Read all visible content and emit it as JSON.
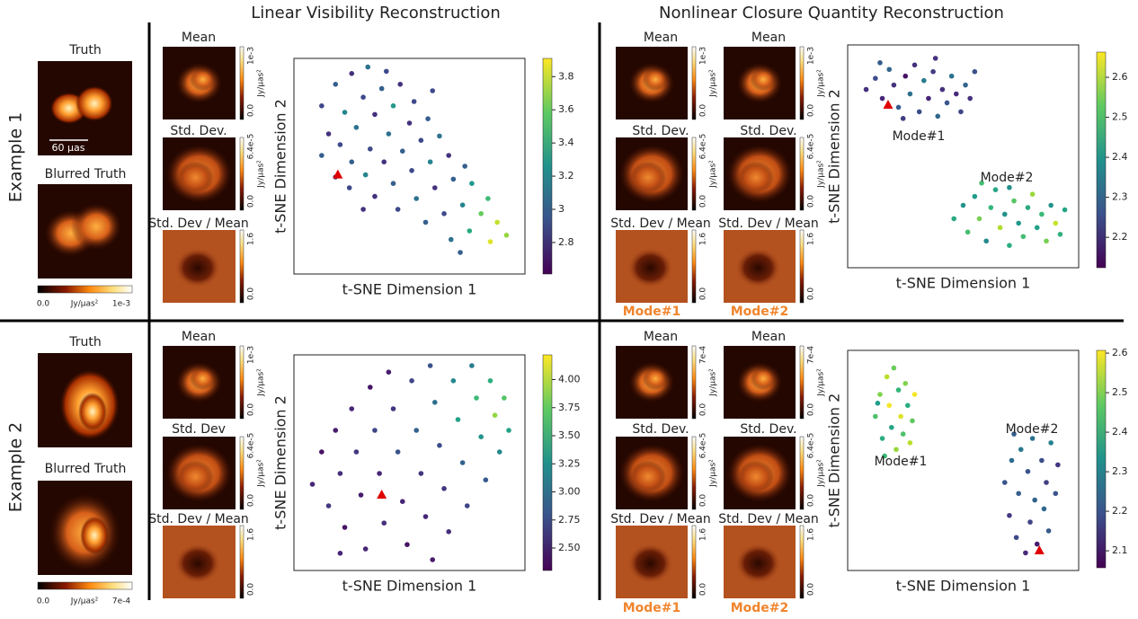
{
  "figure": {
    "titles": [
      "Linear Visibility Reconstruction",
      "Nonlinear Closure Quantity Reconstruction"
    ],
    "examples": [
      {
        "label": "Example 1",
        "truth": "Truth",
        "blurred": "Blurred Truth",
        "scale_bar": "60 μas",
        "cbar": [
          "0.0",
          "Jy/μas²",
          "1e-3"
        ],
        "linear": [
          {
            "title": "Mean",
            "cbar": [
              "0.0",
              "Jy/μas²",
              "1e-3"
            ]
          },
          {
            "title": "Std. Dev.",
            "cbar": [
              "0.0",
              "Jy/μas²",
              "6.4e-5"
            ]
          },
          {
            "title": "Std. Dev / Mean",
            "cbar": [
              "0.0",
              "1.6"
            ]
          }
        ],
        "nonlinear": [
          {
            "mode": "Mode#1",
            "panels": [
              {
                "title": "Mean",
                "cbar": [
                  "0.0",
                  "Jy/μas²",
                  "1e-3"
                ]
              },
              {
                "title": "Std. Dev.",
                "cbar": [
                  "0.0",
                  "Jy/μas²",
                  "6.4e-5"
                ]
              },
              {
                "title": "Std. Dev / Mean",
                "cbar": [
                  "0.0",
                  "1.6"
                ]
              }
            ]
          },
          {
            "mode": "Mode#2",
            "panels": [
              {
                "title": "Mean",
                "cbar": [
                  "0.0",
                  "Jy/μas²",
                  "1e-3"
                ]
              },
              {
                "title": "Std. Dev.",
                "cbar": [
                  "0.0",
                  "Jy/μas²",
                  "6.4e-5"
                ]
              },
              {
                "title": "Std. Dev / Mean",
                "cbar": [
                  "0.0",
                  "1.6"
                ]
              }
            ]
          }
        ]
      },
      {
        "label": "Example 2",
        "truth": "Truth",
        "blurred": "Blurred Truth",
        "cbar": [
          "0.0",
          "Jy/μas²",
          "7e-4"
        ],
        "linear": [
          {
            "title": "Mean",
            "cbar": [
              "0.0",
              "Jy/μas²",
              "1e-3"
            ]
          },
          {
            "title": "Std. Dev",
            "cbar": [
              "0.0",
              "Jy/μas²",
              "6.4e-5"
            ]
          },
          {
            "title": "Std. Dev / Mean",
            "cbar": [
              "0.0",
              "1.6"
            ]
          }
        ],
        "nonlinear": [
          {
            "mode": "Mode#1",
            "panels": [
              {
                "title": "Mean",
                "cbar": [
                  "0.0",
                  "Jy/μas²",
                  "7e-4"
                ]
              },
              {
                "title": "Std. Dev.",
                "cbar": [
                  "0.0",
                  "Jy/μas²",
                  "6.4e-5"
                ]
              },
              {
                "title": "Std. Dev / Mean",
                "cbar": [
                  "0.0",
                  "1.6"
                ]
              }
            ]
          },
          {
            "mode": "Mode#2",
            "panels": [
              {
                "title": "Mean",
                "cbar": [
                  "0.0",
                  "Jy/μas²",
                  "7e-4"
                ]
              },
              {
                "title": "Std. Dev.",
                "cbar": [
                  "0.0",
                  "Jy/μas²",
                  "6.4e-5"
                ]
              },
              {
                "title": "Std. Dev / Mean",
                "cbar": [
                  "0.0",
                  "1.6"
                ]
              }
            ]
          }
        ]
      }
    ]
  },
  "chart_data": [
    {
      "type": "scatter",
      "xlabel": "t-SNE Dimension 1",
      "ylabel": "t-SNE Dimension 2",
      "xlim": [
        0,
        100
      ],
      "ylim": [
        0,
        100
      ],
      "colormap": "viridis",
      "clim": [
        2.61,
        3.91
      ],
      "cticks": [
        2.8,
        3.0,
        3.2,
        3.4,
        3.6,
        3.8
      ],
      "truth": [
        19,
        46
      ],
      "truth_color": "#e00000",
      "points": [
        [
          12,
          78,
          2.9
        ],
        [
          18,
          88,
          3.0
        ],
        [
          25,
          93,
          2.8
        ],
        [
          32,
          96,
          3.1
        ],
        [
          40,
          94,
          2.9
        ],
        [
          15,
          65,
          2.8
        ],
        [
          22,
          75,
          3.2
        ],
        [
          30,
          82,
          2.9
        ],
        [
          38,
          86,
          3.0
        ],
        [
          46,
          88,
          2.8
        ],
        [
          12,
          55,
          3.0
        ],
        [
          20,
          60,
          2.9
        ],
        [
          27,
          68,
          3.1
        ],
        [
          35,
          74,
          2.8
        ],
        [
          43,
          78,
          3.3
        ],
        [
          52,
          80,
          2.9
        ],
        [
          18,
          45,
          2.8
        ],
        [
          25,
          52,
          3.0
        ],
        [
          33,
          58,
          2.9
        ],
        [
          41,
          65,
          3.1
        ],
        [
          50,
          70,
          2.8
        ],
        [
          58,
          72,
          3.0
        ],
        [
          24,
          40,
          2.9
        ],
        [
          31,
          46,
          3.2
        ],
        [
          39,
          52,
          2.8
        ],
        [
          47,
          57,
          3.0
        ],
        [
          55,
          62,
          2.9
        ],
        [
          63,
          64,
          3.1
        ],
        [
          35,
          36,
          2.8
        ],
        [
          43,
          42,
          3.0
        ],
        [
          51,
          48,
          2.9
        ],
        [
          59,
          52,
          3.2
        ],
        [
          67,
          55,
          2.8
        ],
        [
          74,
          50,
          3.0
        ],
        [
          45,
          30,
          2.9
        ],
        [
          53,
          35,
          3.1
        ],
        [
          61,
          40,
          2.8
        ],
        [
          69,
          44,
          3.0
        ],
        [
          77,
          42,
          3.3
        ],
        [
          84,
          35,
          3.5
        ],
        [
          57,
          24,
          3.0
        ],
        [
          65,
          28,
          2.9
        ],
        [
          73,
          32,
          3.2
        ],
        [
          81,
          28,
          3.6
        ],
        [
          88,
          24,
          3.8
        ],
        [
          92,
          18,
          3.7
        ],
        [
          68,
          16,
          3.1
        ],
        [
          76,
          20,
          3.4
        ],
        [
          85,
          15,
          3.85
        ],
        [
          72,
          10,
          3.0
        ],
        [
          30,
          30,
          2.8
        ],
        [
          60,
          85,
          2.9
        ]
      ]
    },
    {
      "type": "scatter",
      "xlabel": "t-SNE Dimension 1",
      "ylabel": "t-SNE Dimension 2",
      "xlim": [
        0,
        100
      ],
      "ylim": [
        0,
        100
      ],
      "colormap": "viridis",
      "clim": [
        2.124,
        2.663
      ],
      "cticks": [
        2.2,
        2.3,
        2.4,
        2.5,
        2.6
      ],
      "truth": [
        17.5,
        73
      ],
      "truth_color": "#e00000",
      "annotations": [
        "Mode#1",
        "Mode#2"
      ],
      "points": [
        [
          8,
          80,
          2.2
        ],
        [
          12,
          85,
          2.25
        ],
        [
          15,
          76,
          2.18
        ],
        [
          18,
          89,
          2.3
        ],
        [
          20,
          82,
          2.2
        ],
        [
          22,
          72,
          2.28
        ],
        [
          25,
          86,
          2.15
        ],
        [
          27,
          78,
          2.32
        ],
        [
          29,
          91,
          2.2
        ],
        [
          31,
          70,
          2.25
        ],
        [
          33,
          84,
          2.35
        ],
        [
          35,
          76,
          2.18
        ],
        [
          37,
          88,
          2.22
        ],
        [
          39,
          68,
          2.3
        ],
        [
          41,
          80,
          2.2
        ],
        [
          43,
          74,
          2.27
        ],
        [
          45,
          86,
          2.33
        ],
        [
          47,
          78,
          2.19
        ],
        [
          49,
          70,
          2.24
        ],
        [
          51,
          82,
          2.3
        ],
        [
          53,
          76,
          2.2
        ],
        [
          24,
          67,
          2.22
        ],
        [
          14,
          92,
          2.28
        ],
        [
          38,
          94,
          2.2
        ],
        [
          55,
          88,
          2.26
        ],
        [
          46,
          22,
          2.45
        ],
        [
          50,
          28,
          2.4
        ],
        [
          52,
          16,
          2.5
        ],
        [
          55,
          32,
          2.42
        ],
        [
          57,
          22,
          2.55
        ],
        [
          60,
          12,
          2.38
        ],
        [
          62,
          27,
          2.48
        ],
        [
          64,
          35,
          2.44
        ],
        [
          66,
          18,
          2.6
        ],
        [
          68,
          24,
          2.4
        ],
        [
          70,
          10,
          2.46
        ],
        [
          72,
          30,
          2.52
        ],
        [
          74,
          20,
          2.41
        ],
        [
          76,
          14,
          2.5
        ],
        [
          78,
          27,
          2.45
        ],
        [
          80,
          33,
          2.58
        ],
        [
          82,
          18,
          2.43
        ],
        [
          84,
          24,
          2.49
        ],
        [
          86,
          12,
          2.55
        ],
        [
          88,
          28,
          2.4
        ],
        [
          90,
          20,
          2.62
        ],
        [
          92,
          15,
          2.47
        ],
        [
          58,
          38,
          2.5
        ],
        [
          94,
          26,
          2.44
        ],
        [
          70,
          36,
          2.39
        ]
      ]
    },
    {
      "type": "scatter",
      "xlabel": "t-SNE Dimension 1",
      "ylabel": "t-SNE Dimension 2",
      "xlim": [
        0,
        100
      ],
      "ylim": [
        0,
        100
      ],
      "colormap": "viridis",
      "clim": [
        2.3,
        4.22
      ],
      "cticks": [
        {
          "value": 2.5,
          "label": "2.50"
        },
        2.75,
        {
          "value": 3,
          "label": "3.00"
        },
        3.25,
        {
          "value": 3.5,
          "label": "3.50"
        },
        3.75,
        {
          "value": 4,
          "label": "4.00"
        }
      ],
      "truth": [
        38,
        35
      ],
      "truth_color": "#e00000",
      "points": [
        [
          8,
          40,
          2.5
        ],
        [
          12,
          55,
          2.4
        ],
        [
          15,
          30,
          2.6
        ],
        [
          18,
          65,
          2.45
        ],
        [
          20,
          45,
          2.55
        ],
        [
          22,
          20,
          2.4
        ],
        [
          25,
          75,
          2.5
        ],
        [
          27,
          55,
          2.6
        ],
        [
          29,
          35,
          2.45
        ],
        [
          31,
          10,
          2.5
        ],
        [
          33,
          85,
          2.4
        ],
        [
          35,
          65,
          2.7
        ],
        [
          37,
          45,
          2.5
        ],
        [
          39,
          22,
          2.55
        ],
        [
          41,
          92,
          2.45
        ],
        [
          43,
          75,
          2.6
        ],
        [
          45,
          55,
          2.8
        ],
        [
          47,
          32,
          2.5
        ],
        [
          49,
          12,
          2.4
        ],
        [
          51,
          88,
          2.7
        ],
        [
          53,
          65,
          2.9
        ],
        [
          55,
          45,
          2.6
        ],
        [
          57,
          25,
          2.5
        ],
        [
          59,
          95,
          2.8
        ],
        [
          61,
          78,
          3.0
        ],
        [
          63,
          58,
          2.75
        ],
        [
          65,
          38,
          2.6
        ],
        [
          67,
          18,
          2.55
        ],
        [
          69,
          88,
          3.2
        ],
        [
          71,
          70,
          3.4
        ],
        [
          73,
          50,
          2.9
        ],
        [
          75,
          30,
          2.7
        ],
        [
          77,
          95,
          3.1
        ],
        [
          79,
          80,
          3.6
        ],
        [
          81,
          62,
          3.3
        ],
        [
          83,
          42,
          2.85
        ],
        [
          85,
          88,
          3.5
        ],
        [
          87,
          72,
          3.9
        ],
        [
          89,
          55,
          3.2
        ],
        [
          91,
          80,
          3.7
        ],
        [
          93,
          65,
          3.4
        ],
        [
          60,
          5,
          2.45
        ],
        [
          20,
          8,
          2.5
        ]
      ]
    },
    {
      "type": "scatter",
      "xlabel": "t-SNE Dimension 1",
      "ylabel": "t-SNE Dimension 2",
      "xlim": [
        0,
        100
      ],
      "ylim": [
        0,
        100
      ],
      "colormap": "viridis",
      "clim": [
        2.057,
        2.607
      ],
      "cticks": [
        2.1,
        2.2,
        2.3,
        2.4,
        2.5,
        2.6
      ],
      "truth": [
        83,
        9
      ],
      "truth_color": "#e00000",
      "annotations": [
        "Mode#1",
        "Mode#2"
      ],
      "points": [
        [
          12,
          70,
          2.45
        ],
        [
          14,
          80,
          2.5
        ],
        [
          15,
          60,
          2.4
        ],
        [
          17,
          88,
          2.55
        ],
        [
          18,
          75,
          2.6
        ],
        [
          19,
          65,
          2.38
        ],
        [
          20,
          92,
          2.48
        ],
        [
          21,
          55,
          2.52
        ],
        [
          22,
          82,
          2.42
        ],
        [
          23,
          70,
          2.58
        ],
        [
          24,
          62,
          2.45
        ],
        [
          25,
          85,
          2.5
        ],
        [
          26,
          75,
          2.4
        ],
        [
          27,
          58,
          2.55
        ],
        [
          28,
          68,
          2.47
        ],
        [
          16,
          52,
          2.43
        ],
        [
          29,
          80,
          2.6
        ],
        [
          13,
          76,
          2.36
        ],
        [
          68,
          40,
          2.2
        ],
        [
          70,
          25,
          2.15
        ],
        [
          71,
          50,
          2.25
        ],
        [
          73,
          15,
          2.18
        ],
        [
          74,
          35,
          2.22
        ],
        [
          75,
          55,
          2.28
        ],
        [
          77,
          8,
          2.12
        ],
        [
          78,
          45,
          2.2
        ],
        [
          79,
          22,
          2.17
        ],
        [
          80,
          60,
          2.26
        ],
        [
          81,
          32,
          2.23
        ],
        [
          82,
          12,
          2.1
        ],
        [
          84,
          50,
          2.19
        ],
        [
          85,
          28,
          2.24
        ],
        [
          86,
          40,
          2.16
        ],
        [
          87,
          18,
          2.21
        ],
        [
          88,
          58,
          2.3
        ],
        [
          90,
          35,
          2.2
        ],
        [
          91,
          48,
          2.14
        ],
        [
          72,
          62,
          2.22
        ]
      ]
    }
  ]
}
